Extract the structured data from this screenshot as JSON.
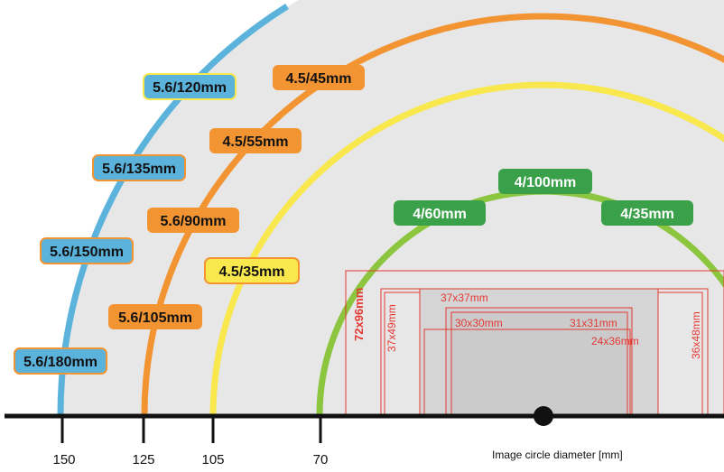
{
  "colors": {
    "blue": "#5bb3dc",
    "orange": "#f39433",
    "yellow": "#f8e84e",
    "green": "#8cc63f",
    "green_label": "#3aa14a",
    "format_red": "#e53935",
    "fill_gray": "#e7e7e7",
    "axis": "#111111"
  },
  "circles": [
    {
      "diameter": 150,
      "color_key": "blue"
    },
    {
      "diameter": 125,
      "color_key": "orange"
    },
    {
      "diameter": 105,
      "color_key": "yellow"
    },
    {
      "diameter": 70,
      "color_key": "green"
    }
  ],
  "axis": {
    "title": "Image circle diameter [mm]",
    "ticks": [
      "150",
      "125",
      "105",
      "70"
    ]
  },
  "lens_labels": {
    "blue": [
      "5.6/120mm",
      "5.6/135mm",
      "5.6/150mm",
      "5.6/180mm"
    ],
    "orange": [
      "4.5/45mm",
      "4.5/55mm",
      "5.6/90mm",
      "5.6/105mm"
    ],
    "yellow": [
      "4.5/35mm"
    ],
    "green": [
      "4/100mm",
      "4/60mm",
      "4/35mm"
    ]
  },
  "formats": [
    "72x96mm",
    "37x49mm",
    "37x37mm",
    "30x30mm",
    "31x31mm",
    "24x36mm",
    "36x48mm"
  ]
}
